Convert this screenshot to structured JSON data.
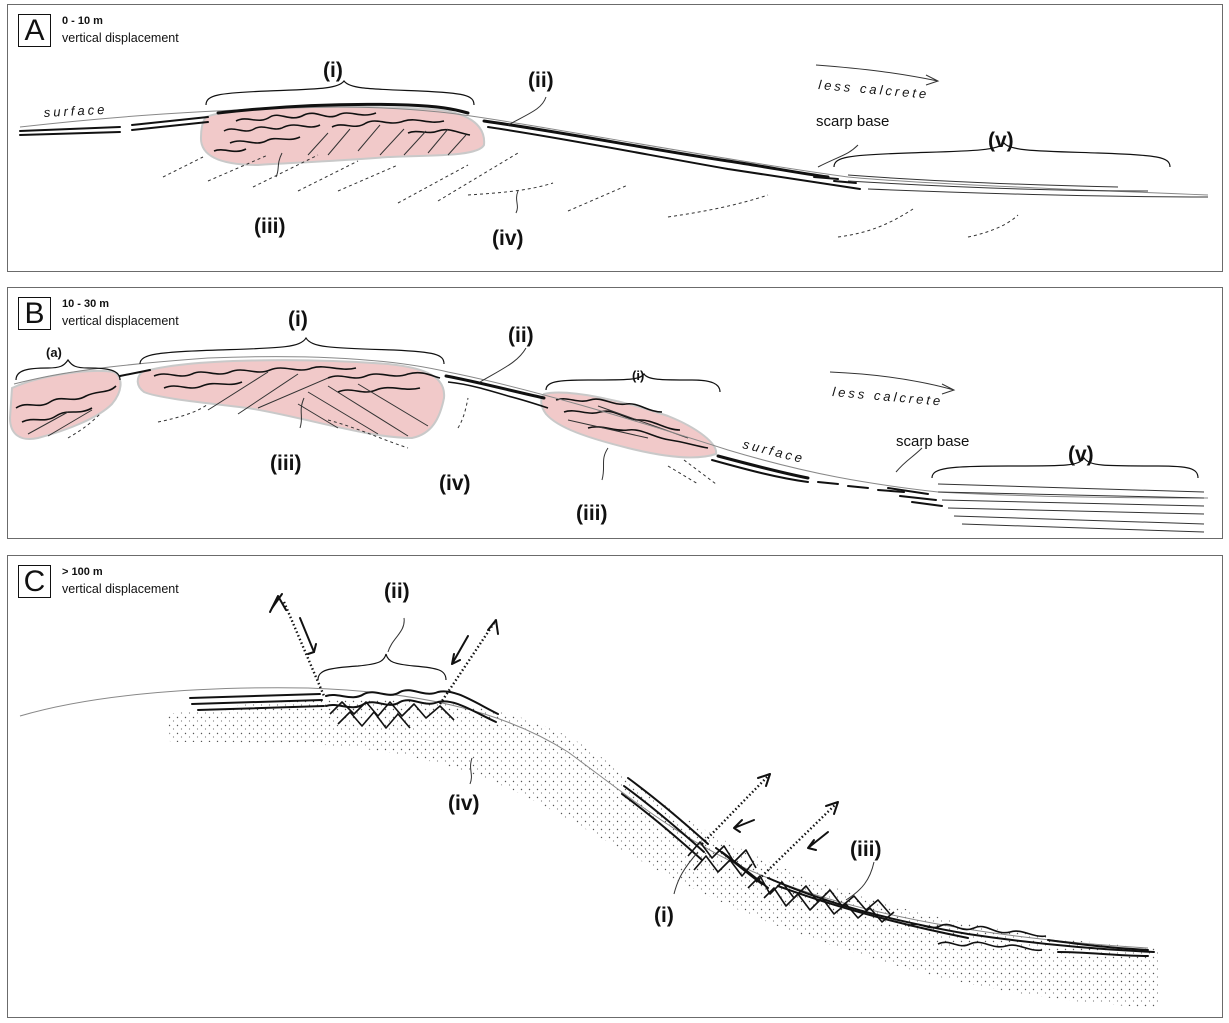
{
  "panels": {
    "a": {
      "letter": "A",
      "range": "0 - 10 m",
      "displacement": "vertical displacement",
      "labels": {
        "i": "(i)",
        "ii": "(ii)",
        "iii": "(iii)",
        "iv": "(iv)",
        "v": "(v)"
      },
      "surface": "surface",
      "less_calcrete": "less calcrete",
      "scarp_base": "scarp base"
    },
    "b": {
      "letter": "B",
      "range": "10 - 30 m",
      "displacement": "vertical displacement",
      "labels": {
        "a": "(a)",
        "i": "(i)",
        "i_small": "(i)",
        "ii": "(ii)",
        "iii_left": "(iii)",
        "iii_right": "(iii)",
        "iv": "(iv)",
        "v": "(v)"
      },
      "surface": "surface",
      "less_calcrete": "less calcrete",
      "scarp_base": "scarp base"
    },
    "c": {
      "letter": "C",
      "range": "> 100 m",
      "displacement": "vertical displacement",
      "labels": {
        "i": "(i)",
        "ii": "(ii)",
        "iii": "(iii)",
        "iv": "(iv)"
      }
    }
  },
  "colors": {
    "calcrete_zone_fill": "#f1c9c9",
    "ink": "#111111"
  }
}
